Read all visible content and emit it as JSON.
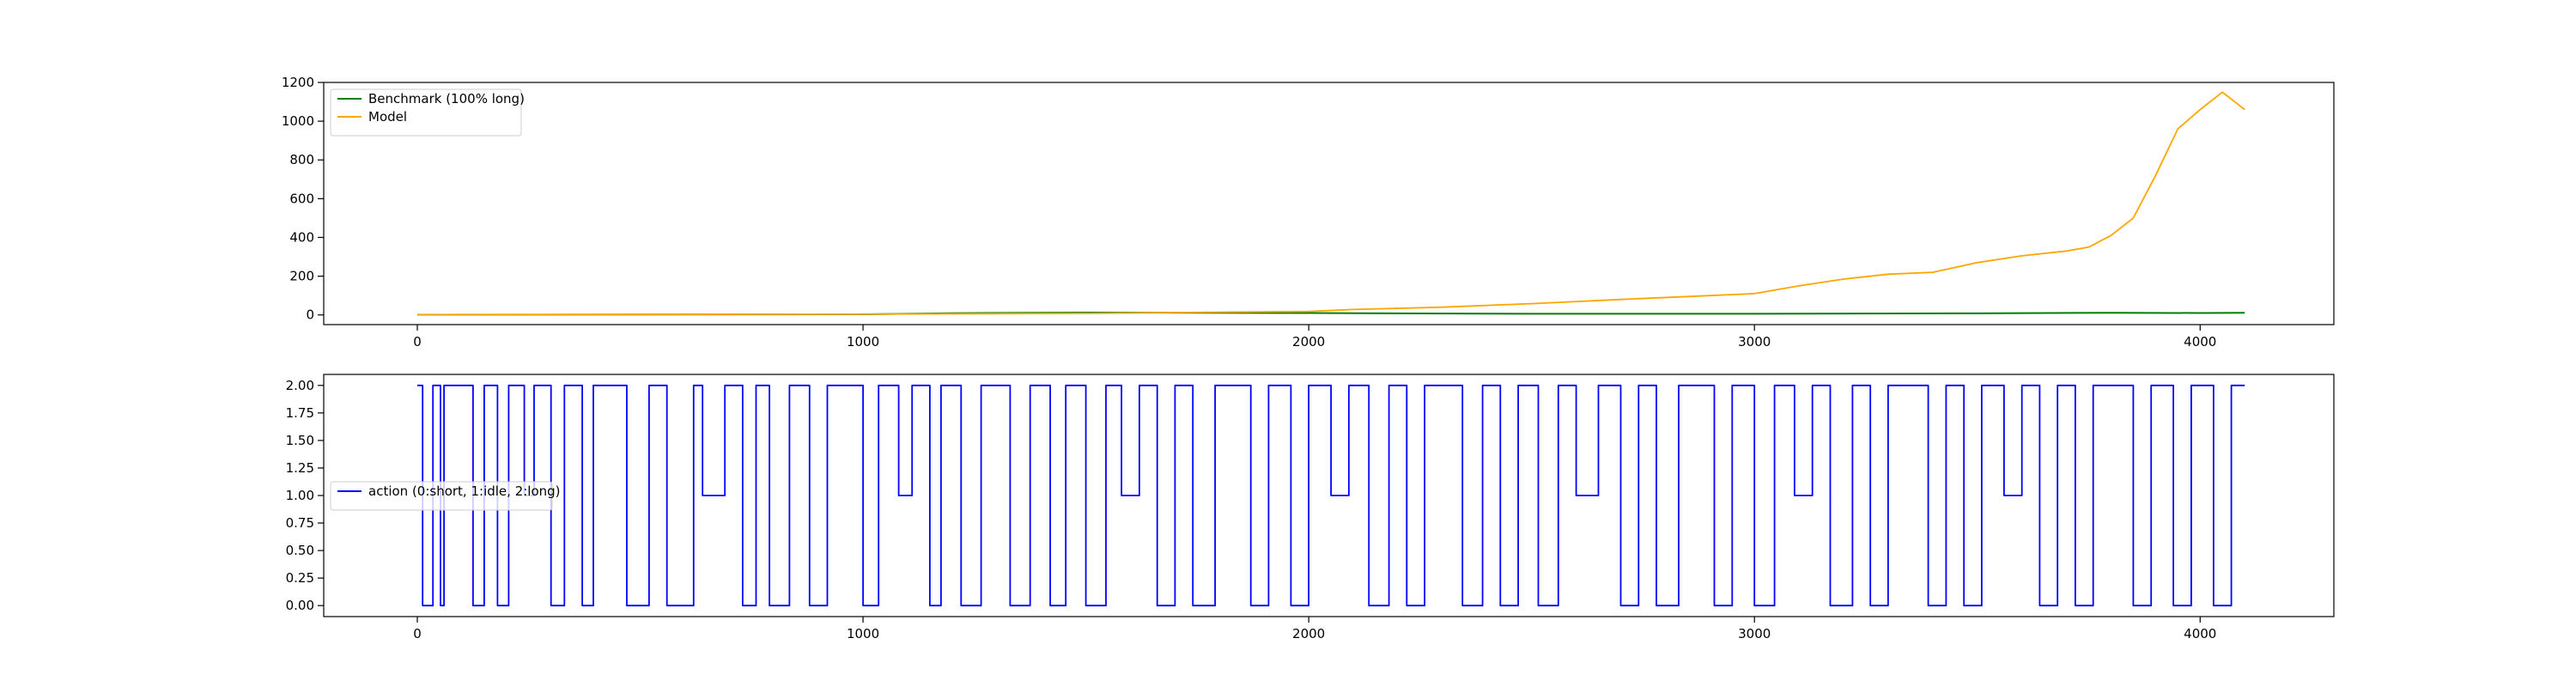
{
  "chart_data": [
    {
      "type": "line",
      "title": "",
      "xlabel": "",
      "ylabel": "",
      "xlim": [
        -210,
        4300
      ],
      "ylim": [
        -50,
        1200
      ],
      "xticks": [
        0,
        1000,
        2000,
        3000,
        4000
      ],
      "yticks": [
        0,
        200,
        400,
        600,
        800,
        1000,
        1200
      ],
      "legend": "upper-left",
      "grid": false,
      "series": [
        {
          "name": "Benchmark (100% long)",
          "color": "#008000",
          "x": [
            0,
            1000,
            1200,
            1500,
            2000,
            2500,
            3000,
            3500,
            3800,
            4000,
            4100
          ],
          "y": [
            1,
            3,
            9,
            12,
            10,
            6,
            6,
            8,
            11,
            10,
            11
          ]
        },
        {
          "name": "Model",
          "color": "#ffa500",
          "x": [
            0,
            500,
            1000,
            1500,
            2000,
            2100,
            2300,
            2500,
            2700,
            2900,
            3000,
            3100,
            3200,
            3300,
            3400,
            3500,
            3600,
            3700,
            3750,
            3800,
            3850,
            3900,
            3950,
            4000,
            4050,
            4100
          ],
          "y": [
            1,
            2,
            4,
            8,
            18,
            28,
            40,
            58,
            80,
            100,
            110,
            150,
            185,
            210,
            220,
            270,
            305,
            330,
            350,
            410,
            500,
            720,
            960,
            1060,
            1150,
            1060
          ]
        }
      ]
    },
    {
      "type": "line",
      "title": "",
      "xlabel": "",
      "ylabel": "",
      "xlim": [
        -210,
        4300
      ],
      "ylim": [
        -0.1,
        2.1
      ],
      "xticks": [
        0,
        1000,
        2000,
        3000,
        4000
      ],
      "yticks": [
        0.0,
        0.25,
        0.5,
        0.75,
        1.0,
        1.25,
        1.5,
        1.75,
        2.0
      ],
      "ytick_labels": [
        "0.00",
        "0.25",
        "0.50",
        "0.75",
        "1.00",
        "1.25",
        "1.50",
        "1.75",
        "2.00"
      ],
      "legend": "center-left",
      "grid": false,
      "series": [
        {
          "name": "action (0:short, 1:idle, 2:long)",
          "color": "#0000ff",
          "drawstyle": "steps",
          "x": [
            0,
            12,
            35,
            52,
            60,
            95,
            125,
            150,
            180,
            205,
            240,
            262,
            300,
            330,
            370,
            395,
            440,
            470,
            520,
            560,
            620,
            640,
            690,
            730,
            760,
            790,
            835,
            880,
            920,
            955,
            1000,
            1035,
            1080,
            1110,
            1150,
            1175,
            1220,
            1265,
            1300,
            1330,
            1375,
            1420,
            1455,
            1500,
            1545,
            1580,
            1620,
            1660,
            1700,
            1740,
            1790,
            1830,
            1870,
            1910,
            1960,
            2000,
            2050,
            2090,
            2135,
            2180,
            2220,
            2260,
            2300,
            2345,
            2390,
            2430,
            2470,
            2515,
            2560,
            2600,
            2650,
            2700,
            2740,
            2780,
            2830,
            2870,
            2910,
            2950,
            3000,
            3045,
            3090,
            3130,
            3170,
            3220,
            3260,
            3300,
            3345,
            3390,
            3430,
            3470,
            3510,
            3560,
            3600,
            3640,
            3680,
            3720,
            3760,
            3800,
            3850,
            3890,
            3940,
            3980,
            4030,
            4070,
            4100
          ],
          "y": [
            2,
            0,
            2,
            0,
            2,
            2,
            0,
            2,
            0,
            2,
            1,
            2,
            0,
            2,
            0,
            2,
            2,
            0,
            2,
            0,
            2,
            1,
            2,
            0,
            2,
            0,
            2,
            0,
            2,
            2,
            0,
            2,
            1,
            2,
            0,
            2,
            0,
            2,
            2,
            0,
            2,
            0,
            2,
            0,
            2,
            1,
            2,
            0,
            2,
            0,
            2,
            2,
            0,
            2,
            0,
            2,
            1,
            2,
            0,
            2,
            0,
            2,
            2,
            0,
            2,
            0,
            2,
            0,
            2,
            1,
            2,
            0,
            2,
            0,
            2,
            2,
            0,
            2,
            0,
            2,
            1,
            2,
            0,
            2,
            0,
            2,
            2,
            0,
            2,
            0,
            2,
            1,
            2,
            0,
            2,
            0,
            2,
            2,
            0,
            2,
            0,
            2,
            0,
            2,
            2
          ]
        }
      ]
    }
  ]
}
